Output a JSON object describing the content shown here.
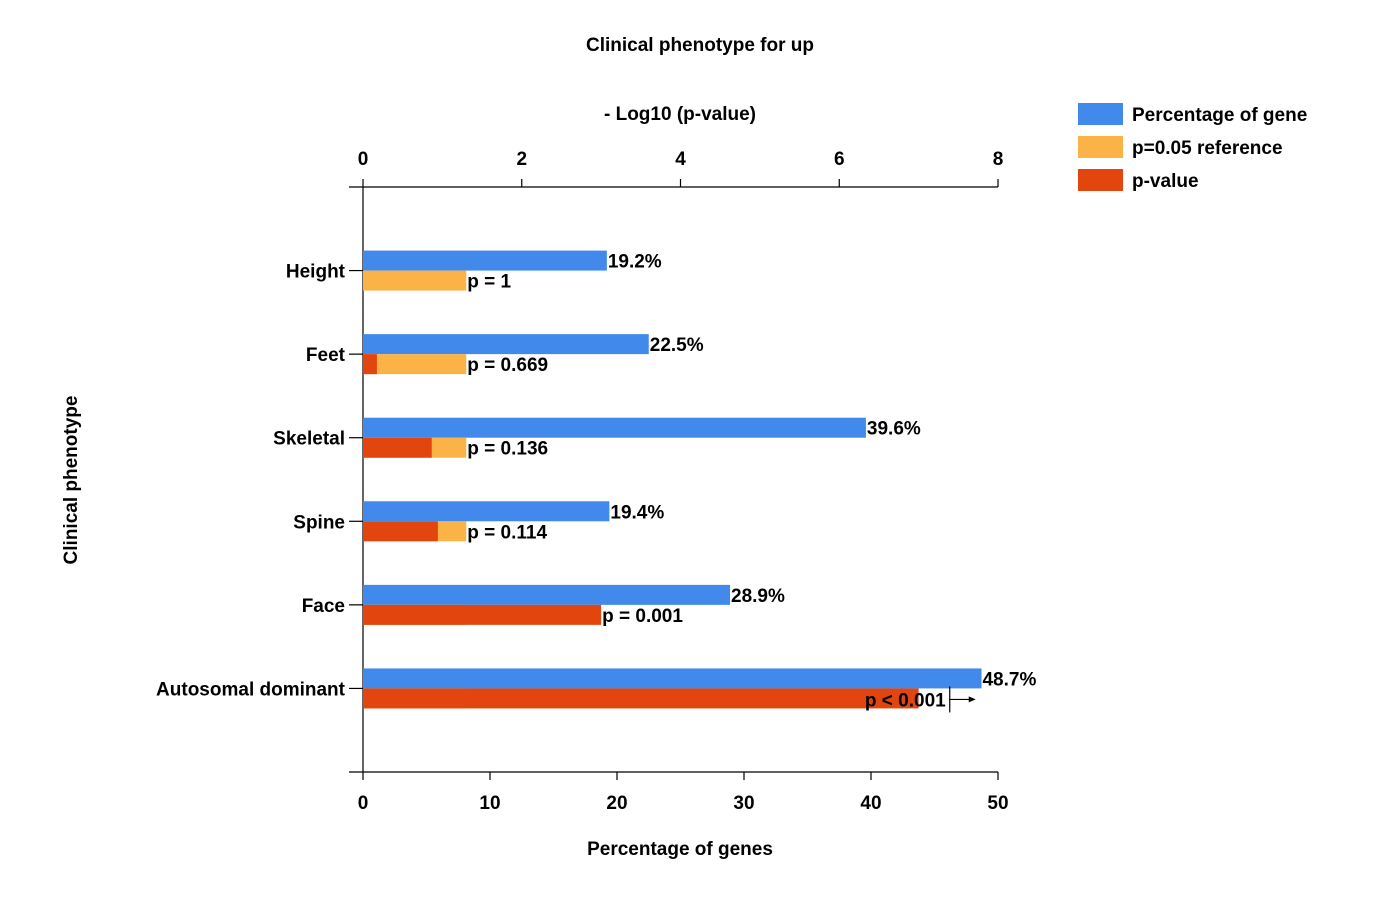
{
  "chart_data": {
    "type": "bar",
    "orientation": "horizontal",
    "title": "Clinical phenotype for up",
    "ylabel": "Clinical phenotype",
    "bottom_axis": {
      "label": "Percentage of genes",
      "range": [
        0,
        50
      ],
      "ticks": [
        "0",
        "10",
        "20",
        "30",
        "40",
        "50"
      ]
    },
    "top_axis": {
      "label": "- Log10 (p-value)",
      "range": [
        0,
        8
      ],
      "ticks": [
        "0",
        "2",
        "4",
        "6",
        "8"
      ]
    },
    "categories": [
      "Height",
      "Feet",
      "Skeletal",
      "Spine",
      "Face",
      "Autosomal dominant"
    ],
    "series": [
      {
        "name": "Percentage of gene",
        "axis": "bottom",
        "color": "#4189EB",
        "values": [
          19.2,
          22.5,
          39.6,
          19.4,
          28.9,
          48.7
        ],
        "labels": [
          "19.2%",
          "22.5%",
          "39.6%",
          "19.4%",
          "28.9%",
          "48.7%"
        ]
      },
      {
        "name": "p=0.05 reference",
        "axis": "top",
        "color": "#FBB246",
        "values": [
          1.301,
          1.301,
          1.301,
          1.301,
          1.301,
          1.301
        ]
      },
      {
        "name": "p-value",
        "axis": "top",
        "color": "#E2450E",
        "values": [
          0,
          0.175,
          0.866,
          0.943,
          3.0,
          7.0
        ],
        "labels": [
          "p = 1",
          "p = 0.669",
          "p = 0.136",
          "p = 0.114",
          "p = 0.001",
          "p < 0.001"
        ]
      }
    ],
    "legend": {
      "position": "top-right"
    },
    "grid": false
  }
}
